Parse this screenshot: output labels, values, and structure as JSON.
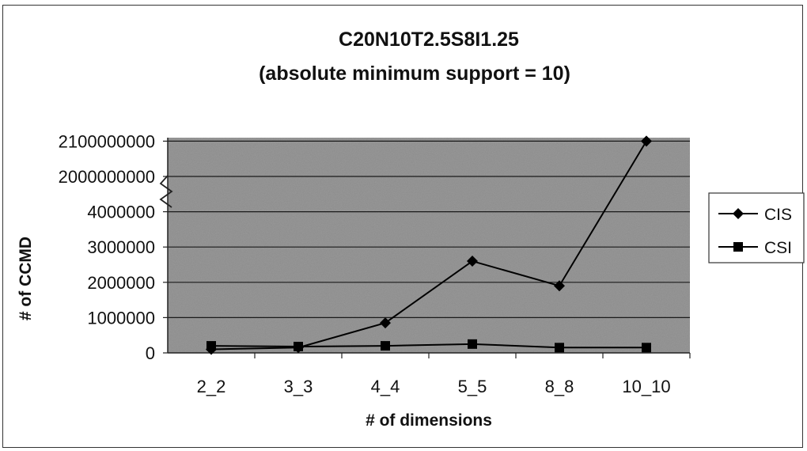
{
  "chart_data": {
    "type": "line",
    "title": "C20N10T2.5S8I1.25",
    "subtitle": "(absolute minimum support = 10)",
    "xlabel": "# of dimensions",
    "ylabel": "# of CCMD",
    "categories": [
      "2_2",
      "3_3",
      "4_4",
      "5_5",
      "8_8",
      "10_10"
    ],
    "y_tick_labels": [
      "0",
      "1000000",
      "2000000",
      "3000000",
      "4000000",
      "2000000000",
      "2100000000"
    ],
    "y_axis_break": "between 4000000 and 2000000000",
    "grid": true,
    "legend": "right",
    "series": [
      {
        "name": "CIS",
        "marker": "diamond",
        "values": [
          100000,
          150000,
          850000,
          2600000,
          1900000,
          2000000000
        ]
      },
      {
        "name": "CSI",
        "marker": "square",
        "values": [
          200000,
          180000,
          200000,
          250000,
          150000,
          150000
        ]
      }
    ],
    "colors": {
      "plot_background": "#9a9a9a",
      "line": "#000000"
    }
  }
}
